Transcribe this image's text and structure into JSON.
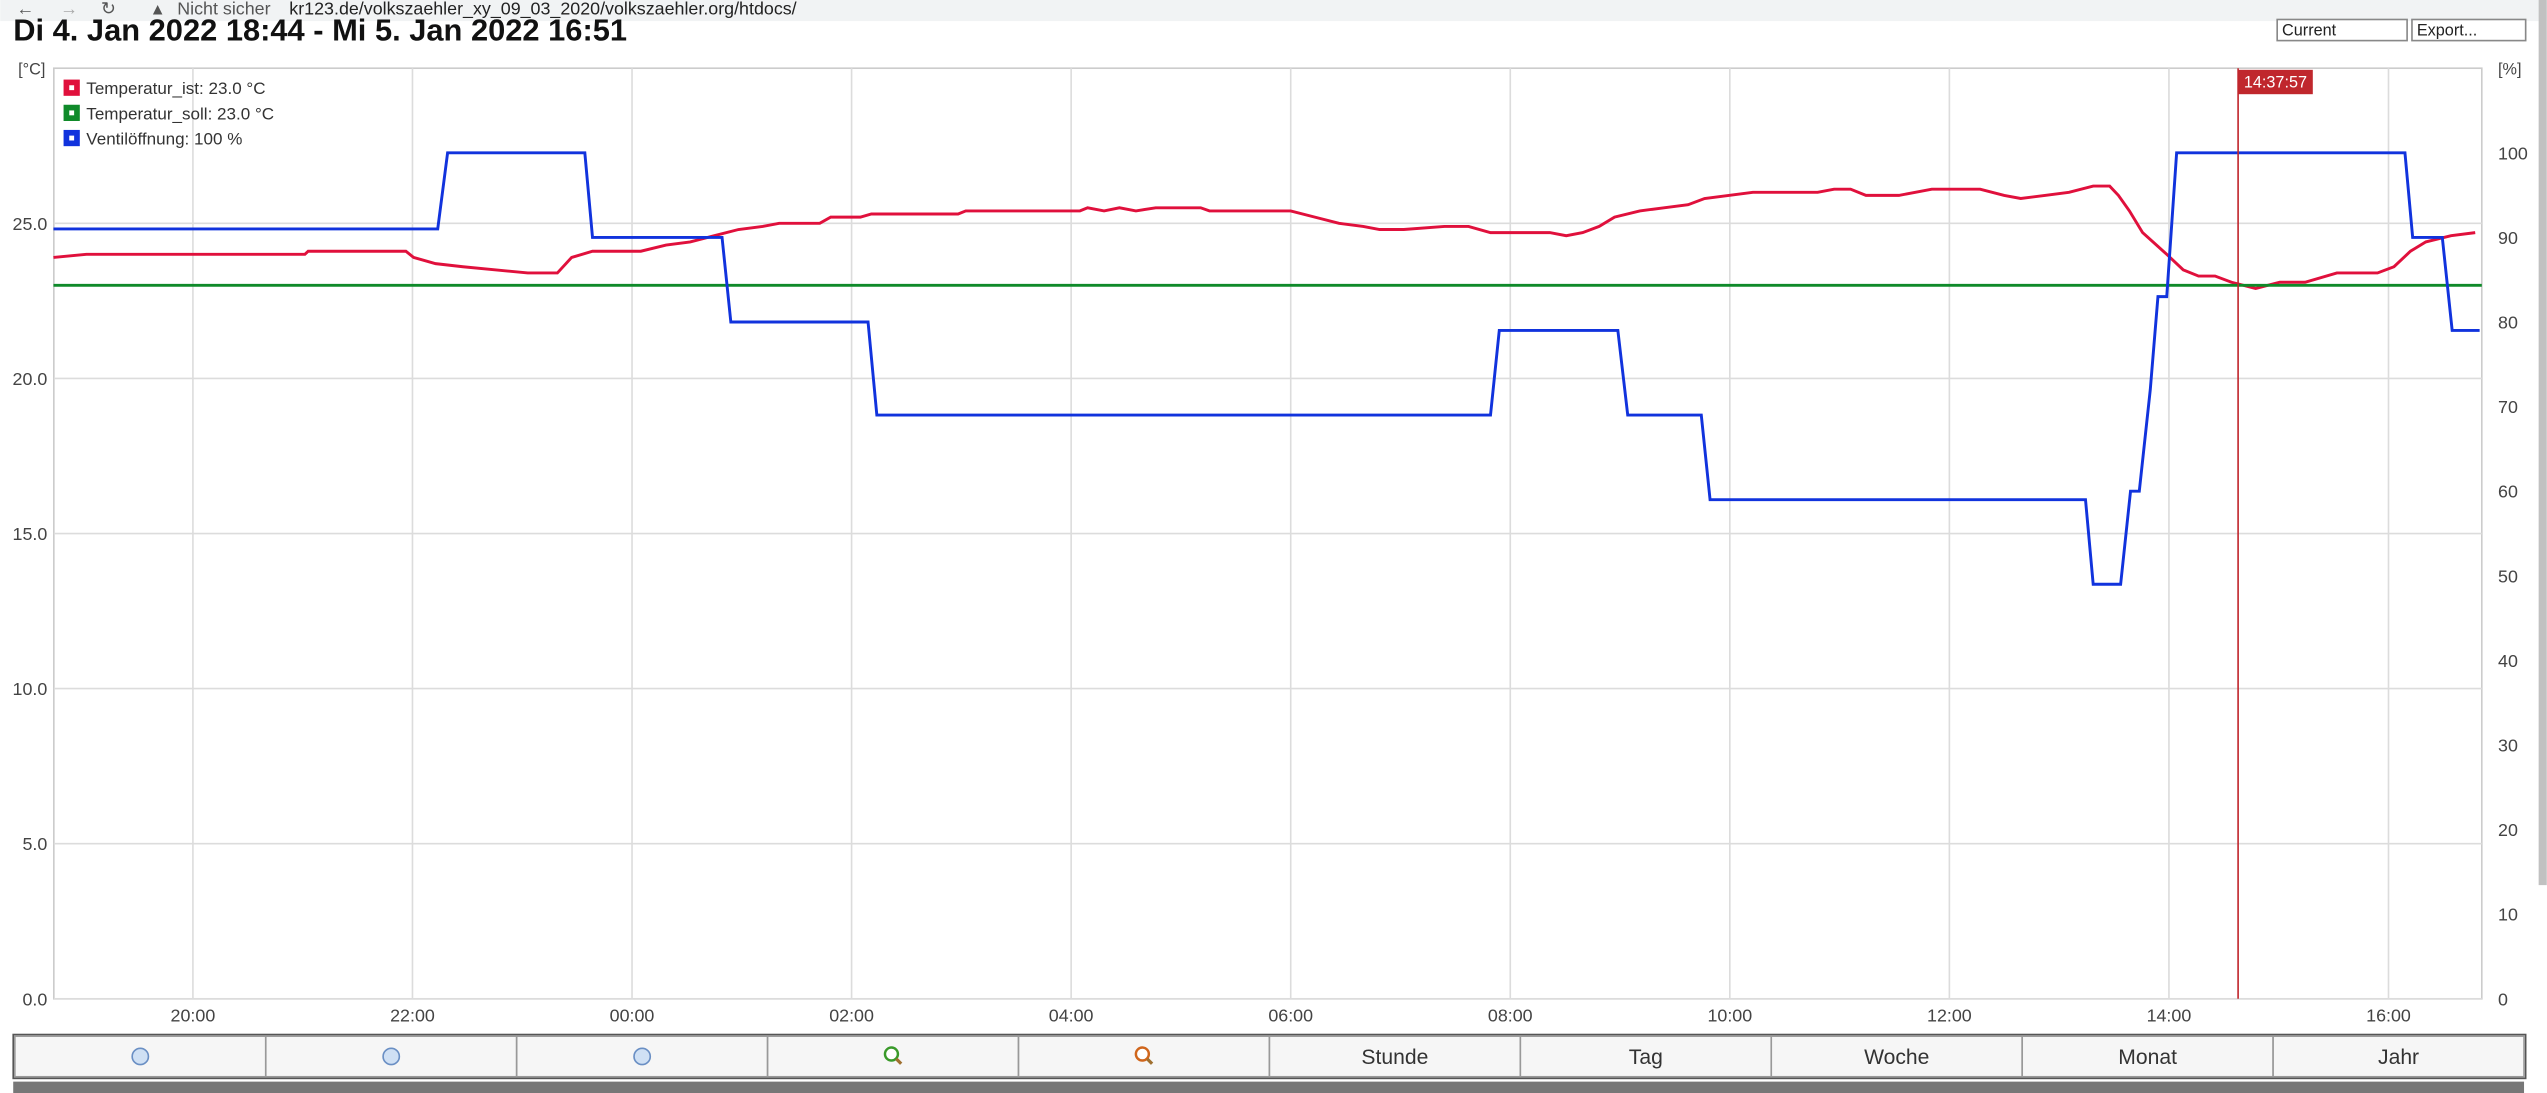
{
  "browser": {
    "security": "Nicht sicher",
    "url": "kr123.de/volkszaehler_xy_09_03_2020/volkszaehler.org/htdocs/"
  },
  "header": {
    "title": "Di 4. Jan 2022 18:44 - Mi 5. Jan 2022 16:51",
    "selects": [
      "Current",
      "Export..."
    ]
  },
  "buttons": [
    "Stunde",
    "Tag",
    "Woche",
    "Monat",
    "Jahr"
  ],
  "chart_data": {
    "type": "line",
    "y_label": "[°C]",
    "y2_label": "[%]",
    "xlim": [
      18.733,
      40.85
    ],
    "xticks": [
      {
        "value": 20,
        "label": "20:00"
      },
      {
        "value": 22,
        "label": "22:00"
      },
      {
        "value": 24,
        "label": "00:00"
      },
      {
        "value": 26,
        "label": "02:00"
      },
      {
        "value": 28,
        "label": "04:00"
      },
      {
        "value": 30,
        "label": "06:00"
      },
      {
        "value": 32,
        "label": "08:00"
      },
      {
        "value": 34,
        "label": "10:00"
      },
      {
        "value": 36,
        "label": "12:00"
      },
      {
        "value": 38,
        "label": "14:00"
      },
      {
        "value": 40,
        "label": "16:00"
      }
    ],
    "ylim": [
      0,
      30
    ],
    "yticks": [
      {
        "value": 0,
        "label": "0.0"
      },
      {
        "value": 5,
        "label": "5.0"
      },
      {
        "value": 10,
        "label": "10.0"
      },
      {
        "value": 15,
        "label": "15.0"
      },
      {
        "value": 20,
        "label": "20.0"
      },
      {
        "value": 25,
        "label": "25.0"
      }
    ],
    "y2lim": [
      0,
      110
    ],
    "y2ticks": [
      0,
      10,
      20,
      30,
      40,
      50,
      60,
      70,
      80,
      90,
      100
    ],
    "grid": true,
    "legend": "top-left",
    "cursor": {
      "x": 38.63,
      "label": "14:37:57",
      "color": "#c0272d"
    },
    "series": [
      {
        "name": "Temperatur_ist: 23.0 °C",
        "color": "#e0103c",
        "x": [
          18.73,
          19.03,
          21.02,
          21.05,
          21.94,
          22.01,
          22.21,
          22.46,
          22.75,
          23.05,
          23.32,
          23.45,
          23.64,
          24.08,
          24.31,
          24.53,
          24.75,
          24.97,
          25.19,
          25.34,
          25.71,
          25.81,
          26.08,
          26.18,
          26.97,
          27.04,
          28.08,
          28.15,
          28.3,
          28.44,
          28.59,
          28.77,
          29.18,
          29.26,
          30.0,
          30.22,
          30.44,
          30.66,
          30.81,
          31.03,
          31.4,
          31.62,
          31.82,
          32.36,
          32.51,
          32.66,
          32.81,
          32.95,
          33.18,
          33.4,
          33.62,
          33.77,
          33.99,
          34.21,
          34.8,
          34.95,
          35.1,
          35.24,
          35.54,
          35.69,
          35.84,
          36.28,
          36.5,
          36.65,
          36.87,
          37.09,
          37.31,
          37.46,
          37.54,
          37.64,
          37.76,
          37.98,
          38.13,
          38.27,
          38.42,
          38.57,
          38.79,
          39.01,
          39.24,
          39.53,
          39.9,
          40.05,
          40.2,
          40.34,
          40.57,
          40.79
        ],
        "values": [
          23.9,
          24.0,
          24.0,
          24.1,
          24.1,
          23.9,
          23.7,
          23.6,
          23.5,
          23.4,
          23.4,
          23.9,
          24.1,
          24.1,
          24.3,
          24.4,
          24.6,
          24.8,
          24.9,
          25.0,
          25.0,
          25.2,
          25.2,
          25.3,
          25.3,
          25.4,
          25.4,
          25.5,
          25.4,
          25.5,
          25.4,
          25.5,
          25.5,
          25.4,
          25.4,
          25.2,
          25.0,
          24.9,
          24.8,
          24.8,
          24.9,
          24.9,
          24.7,
          24.7,
          24.6,
          24.7,
          24.9,
          25.2,
          25.4,
          25.5,
          25.6,
          25.8,
          25.9,
          26.0,
          26.0,
          26.1,
          26.1,
          25.9,
          25.9,
          26.0,
          26.1,
          26.1,
          25.9,
          25.8,
          25.9,
          26.0,
          26.2,
          26.2,
          25.9,
          25.4,
          24.7,
          24.0,
          23.5,
          23.3,
          23.3,
          23.1,
          22.9,
          23.1,
          23.1,
          23.4,
          23.4,
          23.6,
          24.1,
          24.4,
          24.6,
          24.7
        ]
      },
      {
        "name": "Temperatur_soll: 23.0 °C",
        "color": "#0f8a2a",
        "x": [
          18.73,
          40.85
        ],
        "values": [
          23,
          23
        ]
      },
      {
        "name": "Ventilöffnung: 100 %",
        "color": "#1133dd",
        "axis": "y2",
        "x": [
          18.73,
          22.23,
          22.32,
          23.57,
          23.64,
          24.82,
          24.9,
          26.15,
          26.23,
          31.82,
          31.9,
          32.98,
          33.07,
          33.74,
          33.82,
          37.24,
          37.31,
          37.56,
          37.65,
          37.73,
          37.83,
          37.9,
          37.98,
          38.07,
          40.15,
          40.22,
          40.49,
          40.58,
          40.83
        ],
        "values": [
          91,
          91,
          100,
          100,
          90,
          90,
          80,
          80,
          69,
          69,
          79,
          79,
          69,
          69,
          59,
          59,
          49,
          49,
          60,
          60,
          72,
          83,
          83,
          100,
          100,
          90,
          90,
          79,
          79
        ]
      }
    ]
  }
}
